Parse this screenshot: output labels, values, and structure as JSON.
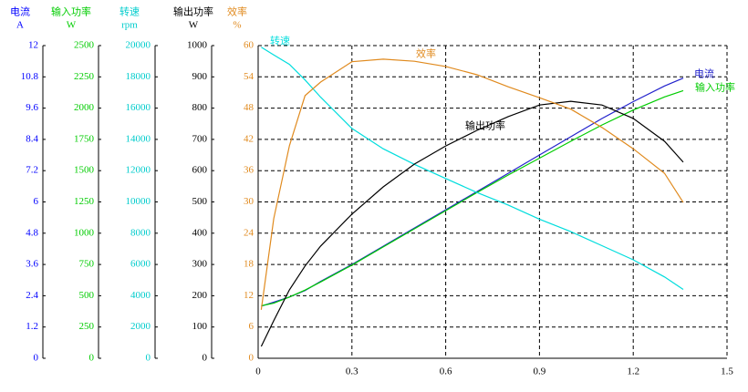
{
  "chart_data": {
    "type": "line",
    "x": [
      0.01,
      0.05,
      0.1,
      0.15,
      0.2,
      0.3,
      0.4,
      0.5,
      0.6,
      0.7,
      0.8,
      0.9,
      1.0,
      1.1,
      1.2,
      1.3,
      1.36
    ],
    "xlim": [
      0,
      1.5
    ],
    "xticks": [
      0,
      0.3,
      0.6,
      0.9,
      1.2,
      1.5
    ],
    "grid": true,
    "axes": [
      {
        "name": "电流",
        "unit": "A",
        "color": "#0000ff",
        "ylim": [
          0,
          12
        ],
        "yticks": [
          0,
          1.2,
          2.4,
          3.6,
          4.8,
          6,
          7.2,
          8.4,
          9.6,
          10.8,
          12
        ]
      },
      {
        "name": "输入功率",
        "unit": "W",
        "color": "#00cc00",
        "ylim": [
          0,
          2500
        ],
        "yticks": [
          0,
          250,
          500,
          750,
          1000,
          1250,
          1500,
          1750,
          2000,
          2250,
          2500
        ]
      },
      {
        "name": "转速",
        "unit": "rpm",
        "color": "#00cccc",
        "ylim": [
          0,
          20000
        ],
        "yticks": [
          0,
          2000,
          4000,
          6000,
          8000,
          10000,
          12000,
          14000,
          16000,
          18000,
          20000
        ]
      },
      {
        "name": "输出功率",
        "unit": "W",
        "color": "#000000",
        "ylim": [
          0,
          1000
        ],
        "yticks": [
          0,
          100,
          200,
          300,
          400,
          500,
          600,
          700,
          800,
          900,
          1000
        ]
      },
      {
        "name": "效率",
        "unit": "%",
        "color": "#e08a1e",
        "ylim": [
          0,
          60
        ],
        "yticks": [
          0,
          6,
          12,
          18,
          24,
          30,
          36,
          42,
          48,
          54,
          60
        ]
      }
    ],
    "series": [
      {
        "name": "电流",
        "color": "#2222cc",
        "axis": 0,
        "values": [
          2.0,
          2.15,
          2.35,
          2.6,
          2.95,
          3.6,
          4.3,
          5.0,
          5.7,
          6.4,
          7.1,
          7.8,
          8.5,
          9.2,
          9.85,
          10.45,
          10.75
        ]
      },
      {
        "name": "输入功率",
        "color": "#00cc00",
        "axis": 1,
        "values": [
          420,
          440,
          490,
          545,
          610,
          745,
          890,
          1035,
          1180,
          1325,
          1465,
          1600,
          1735,
          1865,
          1985,
          2090,
          2140
        ]
      },
      {
        "name": "转速",
        "color": "#00dddd",
        "axis": 2,
        "values": [
          19900,
          19400,
          18800,
          17800,
          16700,
          14700,
          13400,
          12400,
          11500,
          10600,
          9800,
          8900,
          8100,
          7200,
          6300,
          5200,
          4400
        ]
      },
      {
        "name": "输出功率",
        "color": "#000000",
        "axis": 3,
        "values": [
          38,
          120,
          219,
          295,
          359,
          461,
          548,
          621,
          679,
          729,
          773,
          810,
          822,
          810,
          767,
          694,
          627
        ]
      },
      {
        "name": "效率",
        "color": "#e08a1e",
        "axis": 4,
        "values": [
          9.3,
          26.8,
          40.8,
          50.4,
          53,
          56.9,
          57.4,
          57,
          56,
          54.4,
          52.1,
          50,
          47.8,
          44.3,
          40.2,
          35.5,
          29.9
        ]
      }
    ]
  }
}
